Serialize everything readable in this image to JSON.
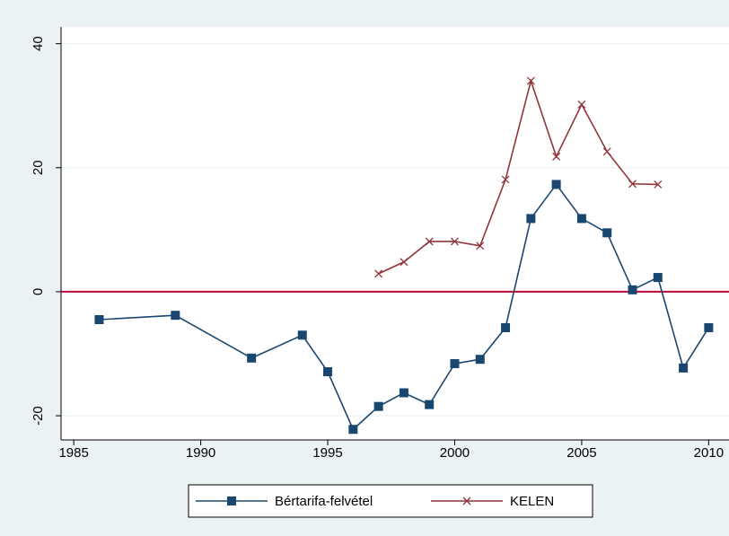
{
  "chart_data": {
    "type": "line",
    "x": [
      1986,
      1989,
      1992,
      1994,
      1995,
      1996,
      1997,
      1998,
      1999,
      2000,
      2001,
      2002,
      2003,
      2004,
      2005,
      2006,
      2007,
      2008,
      2009,
      2010
    ],
    "series": [
      {
        "name": "Bértarifa-felvétel",
        "color": "#1a476f",
        "marker": "square",
        "values": [
          -4.5,
          -3.8,
          -10.7,
          -7,
          -12.9,
          -22.2,
          -18.5,
          -16.3,
          -18.2,
          -11.6,
          -10.9,
          -5.8,
          11.8,
          17.3,
          11.8,
          9.5,
          0.3,
          2.3,
          -12.3,
          -5.8
        ]
      },
      {
        "name": "KELEN",
        "color": "#90353b",
        "marker": "x",
        "values": [
          null,
          null,
          null,
          null,
          null,
          null,
          2.9,
          4.8,
          8.1,
          8.1,
          7.4,
          18.1,
          34,
          21.8,
          30.2,
          22.6,
          17.4,
          17.3,
          null,
          null
        ]
      }
    ],
    "xlim": [
      1984.5,
      2010.8
    ],
    "xticks": [
      1985,
      1990,
      1995,
      2000,
      2005,
      2010
    ],
    "ylim": [
      -23.9,
      42.7
    ],
    "yticks": [
      -20,
      0,
      20,
      40
    ],
    "grid": true,
    "hline": 0,
    "hline_color": "#c10534",
    "legend": "bottom"
  }
}
